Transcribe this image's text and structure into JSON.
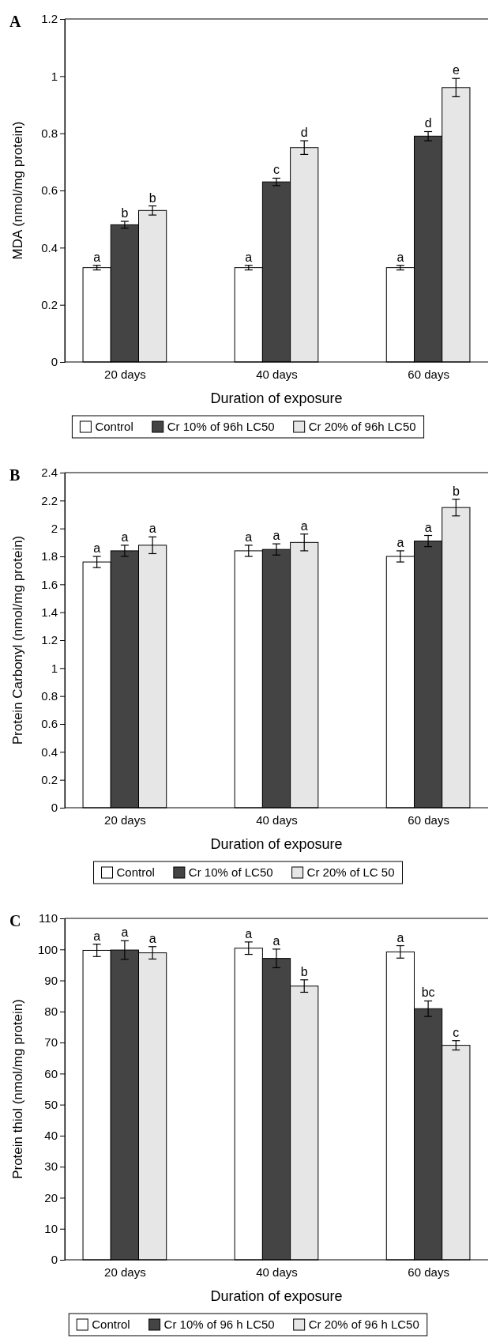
{
  "chart_data": [
    {
      "type": "bar",
      "title": "A",
      "xlabel": "Duration of exposure",
      "ylabel": "MDA (nmol/mg protein)",
      "categories": [
        "20 days",
        "40 days",
        "60 days"
      ],
      "ylim": [
        0,
        1.2
      ],
      "yticks": [
        0,
        0.2,
        0.4,
        0.6,
        0.8,
        1,
        1.2
      ],
      "legend": "bottom",
      "series": [
        {
          "name": "Control",
          "color": "#ffffff",
          "values": [
            0.33,
            0.33,
            0.33
          ],
          "errors": [
            0.008,
            0.008,
            0.008
          ],
          "value_labels": [
            "a",
            "a",
            "a"
          ]
        },
        {
          "name": "Cr 10% of 96h LC50",
          "color": "#444444",
          "values": [
            0.48,
            0.63,
            0.79
          ],
          "errors": [
            0.012,
            0.013,
            0.016
          ],
          "value_labels": [
            "b",
            "c",
            "d"
          ]
        },
        {
          "name": "Cr 20% of 96h LC50",
          "color": "#e6e6e6",
          "values": [
            0.53,
            0.75,
            0.96
          ],
          "errors": [
            0.016,
            0.024,
            0.032
          ],
          "value_labels": [
            "b",
            "d",
            "e"
          ]
        }
      ]
    },
    {
      "type": "bar",
      "title": "B",
      "xlabel": "Duration of exposure",
      "ylabel": "Protein Carbonyl (nmol/mg protein)",
      "categories": [
        "20 days",
        "40 days",
        "60 days"
      ],
      "ylim": [
        0,
        2.4
      ],
      "yticks": [
        0,
        0.2,
        0.4,
        0.6,
        0.8,
        1,
        1.2,
        1.4,
        1.6,
        1.8,
        2,
        2.2,
        2.4
      ],
      "legend": "bottom",
      "series": [
        {
          "name": "Control",
          "color": "#ffffff",
          "values": [
            1.76,
            1.84,
            1.8
          ],
          "errors": [
            0.04,
            0.04,
            0.04
          ],
          "value_labels": [
            "a",
            "a",
            "a"
          ]
        },
        {
          "name": "Cr 10% of LC50",
          "color": "#444444",
          "values": [
            1.84,
            1.85,
            1.91
          ],
          "errors": [
            0.04,
            0.04,
            0.04
          ],
          "value_labels": [
            "a",
            "a",
            "a"
          ]
        },
        {
          "name": "Cr 20% of LC 50",
          "color": "#e6e6e6",
          "values": [
            1.88,
            1.9,
            2.15
          ],
          "errors": [
            0.06,
            0.06,
            0.06
          ],
          "value_labels": [
            "a",
            "a",
            "b"
          ]
        }
      ]
    },
    {
      "type": "bar",
      "title": "C",
      "xlabel": "Duration of exposure",
      "ylabel": "Protein thiol (nmol/mg protein)",
      "categories": [
        "20 days",
        "40 days",
        "60 days"
      ],
      "ylim": [
        0,
        110
      ],
      "yticks": [
        0,
        10,
        20,
        30,
        40,
        50,
        60,
        70,
        80,
        90,
        100,
        110
      ],
      "legend": "bottom",
      "series": [
        {
          "name": "Control",
          "color": "#ffffff",
          "values": [
            99.7,
            100.4,
            99.2
          ],
          "errors": [
            2,
            2,
            2
          ],
          "value_labels": [
            "a",
            "a",
            "a"
          ]
        },
        {
          "name": "Cr 10% of 96 h LC50",
          "color": "#444444",
          "values": [
            99.8,
            97.1,
            80.9
          ],
          "errors": [
            3,
            3,
            2.5
          ],
          "value_labels": [
            "a",
            "a",
            "bc"
          ]
        },
        {
          "name": "Cr 20% of 96 h LC50",
          "color": "#e6e6e6",
          "values": [
            98.9,
            88.2,
            69.1
          ],
          "errors": [
            2,
            2,
            1.5
          ],
          "value_labels": [
            "a",
            "b",
            "c"
          ]
        }
      ]
    }
  ]
}
